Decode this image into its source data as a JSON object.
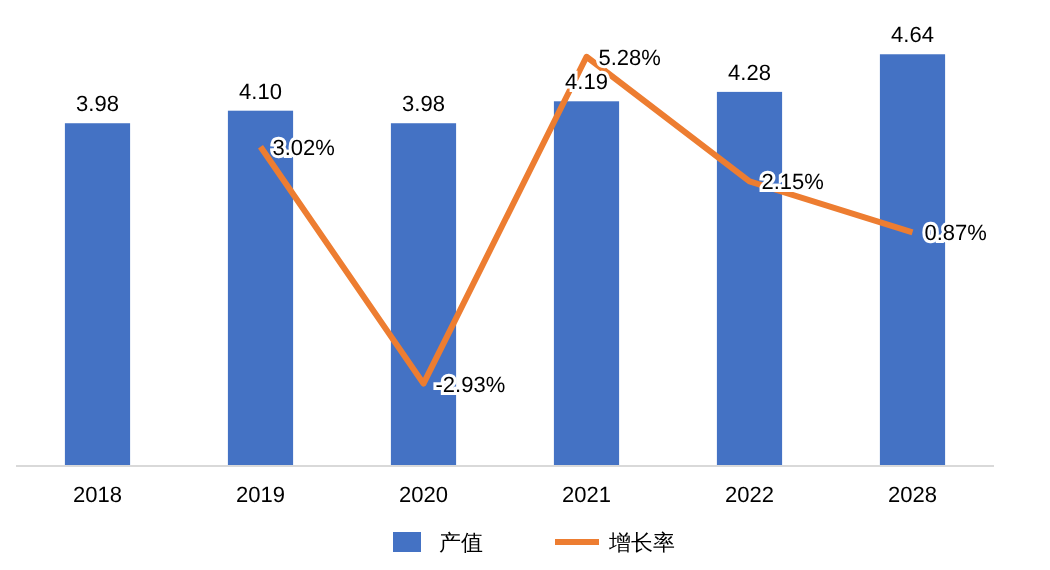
{
  "chart_data": {
    "type": "bar",
    "categories": [
      "2018",
      "2019",
      "2020",
      "2021",
      "2022",
      "2028"
    ],
    "series": [
      {
        "name": "产值",
        "color": "#4472c4",
        "values": [
          3.98,
          4.1,
          3.98,
          4.19,
          4.28,
          4.64
        ],
        "value_labels": [
          "3.98",
          "4.10",
          "3.98",
          "4.19",
          "4.28",
          "4.64"
        ]
      },
      {
        "name": "增长率",
        "type": "line",
        "axis": "y2",
        "color": "#ed7d31",
        "values": [
          null,
          3.02,
          -2.93,
          5.28,
          2.15,
          0.87
        ],
        "value_labels": [
          null,
          "3.02%",
          "-2.93%",
          "5.28%",
          "2.15%",
          "0.87%"
        ]
      }
    ],
    "ylim": [
      0.7,
      4.7
    ],
    "y2lim": [
      -5,
      5.5
    ],
    "tick_labels": "x",
    "legend": "bottom"
  }
}
